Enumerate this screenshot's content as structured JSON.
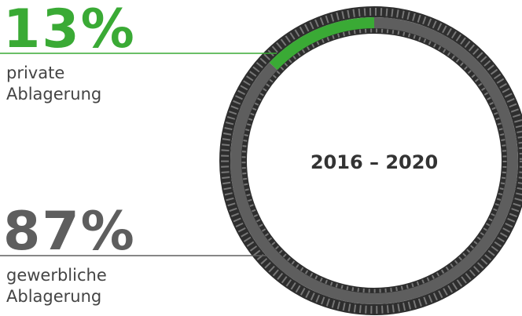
{
  "chart_data": {
    "type": "donut",
    "center_label": "2016 – 2020",
    "categories": [
      "private\nAblagerung",
      "gewerbliche\nAblagerung"
    ],
    "values": [
      13,
      87
    ],
    "value_labels": [
      "13%",
      "87%"
    ],
    "colors": [
      "#3aaa35",
      "#5e5e5e"
    ]
  }
}
